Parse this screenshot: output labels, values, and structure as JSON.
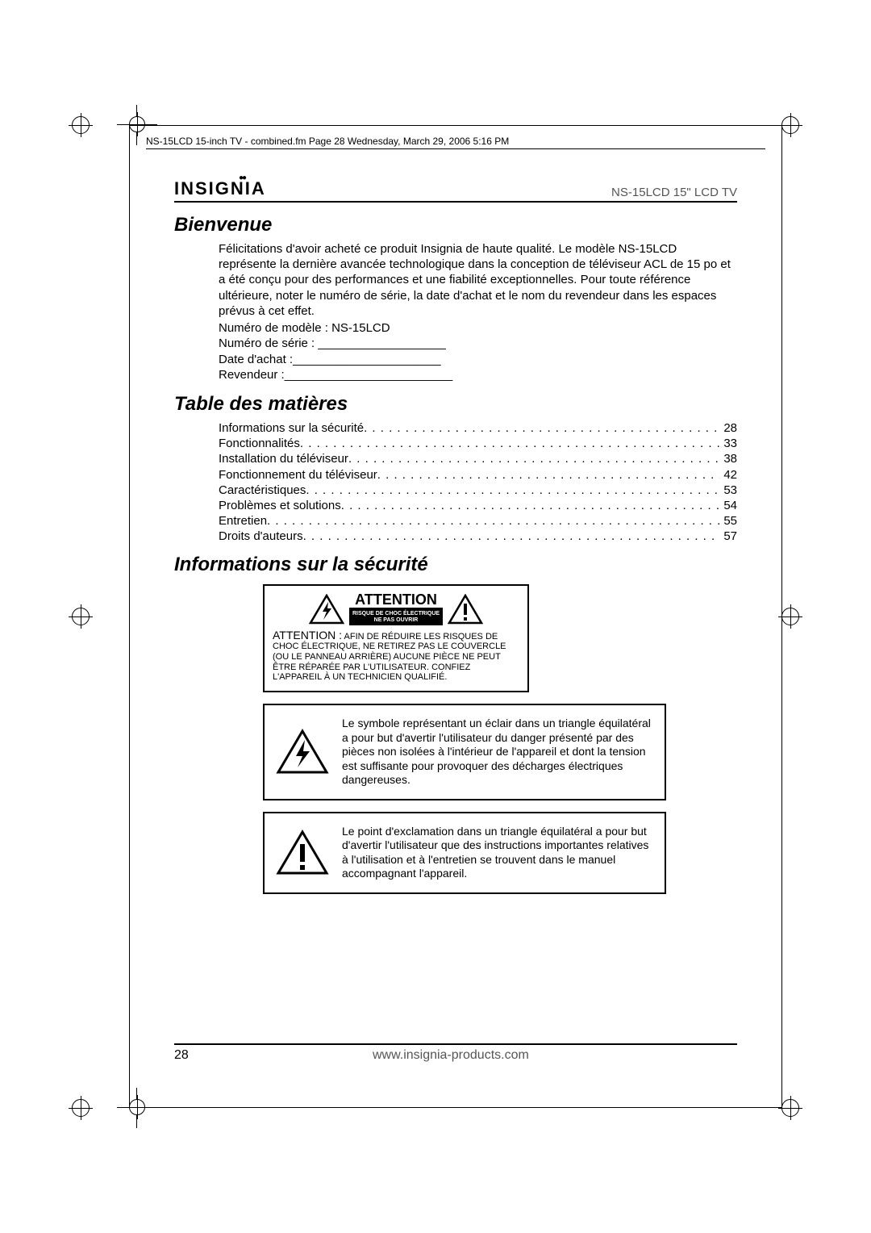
{
  "page_meta": "NS-15LCD 15-inch TV - combined.fm  Page 28  Wednesday, March 29, 2006  5:16 PM",
  "brand": "INSIGNIA",
  "product": "NS-15LCD 15\" LCD TV",
  "sections": {
    "bienvenue": "Bienvenue",
    "toc": "Table des matières",
    "securite": "Informations sur la sécurité"
  },
  "welcome_body": "Félicitations d'avoir acheté ce produit Insignia de haute qualité. Le modèle NS-15LCD représente la dernière avancée technologique dans la conception de téléviseur ACL de 15 po et a été conçu pour des performances et une fiabilité exceptionnelles. Pour toute référence ultérieure, noter le numéro de série, la date d'achat et le nom du revendeur dans les espaces prévus à cet effet.",
  "form": {
    "model": "Numéro de modèle : NS-15LCD",
    "serial": "Numéro de série : ___________________",
    "date": "Date d'achat :______________________",
    "dealer": "Revendeur :_________________________"
  },
  "toc_items": [
    {
      "label": "Informations sur la sécurité",
      "page": "28"
    },
    {
      "label": "Fonctionnalités",
      "page": "33"
    },
    {
      "label": "Installation du téléviseur",
      "page": "38"
    },
    {
      "label": "Fonctionnement du téléviseur",
      "page": "42"
    },
    {
      "label": "Caractéristiques",
      "page": "53"
    },
    {
      "label": "Problèmes et solutions",
      "page": "54"
    },
    {
      "label": "Entretien",
      "page": "55"
    },
    {
      "label": "Droits d'auteurs",
      "page": "57"
    }
  ],
  "attention": {
    "title": "ATTENTION",
    "sub1": "RISQUE DE CHOC ÉLECTRIQUE",
    "sub2": "NE PAS OUVRIR",
    "body_lead": "ATTENTION :",
    "body": " AFIN DE RÉDUIRE LES RISQUES DE CHOC ÉLECTRIQUE, NE RETIREZ PAS LE COUVERCLE (OU LE PANNEAU ARRIÈRE) AUCUNE PIÈCE NE PEUT ÊTRE RÉPARÉE PAR L'UTILISATEUR. CONFIEZ L'APPAREIL À UN TECHNICIEN QUALIFIÉ."
  },
  "symbol_lightning": "Le symbole représentant un éclair dans un triangle équilatéral a pour but d'avertir l'utilisateur du danger présenté par des pièces non isolées à l'intérieur de l'appareil et dont la tension est suffisante pour provoquer des décharges électriques dangereuses.",
  "symbol_exclaim": "Le point d'exclamation dans un triangle équilatéral a pour but d'avertir l'utilisateur que des instructions importantes relatives à l'utilisation et à l'entretien se trouvent dans le manuel accompagnant l'appareil.",
  "footer": {
    "page": "28",
    "url": "www.insignia-products.com"
  }
}
